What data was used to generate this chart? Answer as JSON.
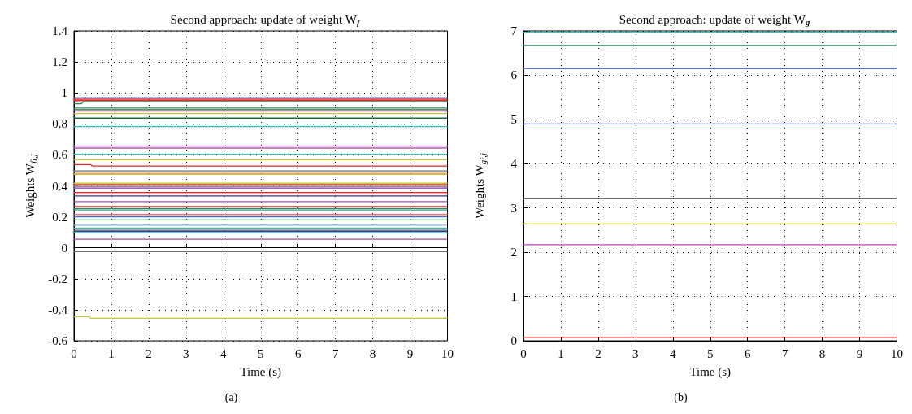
{
  "chart_data": [
    {
      "type": "line",
      "title": "Second approach: update of weight W$_{f}$",
      "xlabel": "Time (s)",
      "ylabel": "Weights W$_{fi,j}$",
      "annotations": [
        "(a)"
      ],
      "xlim": [
        0,
        10
      ],
      "xticks": [
        0,
        1,
        2,
        3,
        4,
        5,
        6,
        7,
        8,
        9,
        10
      ],
      "ylim": [
        -0.6,
        1.4
      ],
      "yticks": [
        -0.6,
        -0.4,
        -0.2,
        0,
        0.2,
        0.4,
        0.6,
        0.8,
        1,
        1.2,
        1.4
      ],
      "grid": true,
      "marker": "none",
      "line_style": "solid",
      "series": [
        {
          "color": "#4f6fc9",
          "x": [
            0,
            10
          ],
          "values": [
            0.969,
            0.969
          ]
        },
        {
          "color": "#e8262a",
          "x": [
            0,
            10
          ],
          "values": [
            0.959,
            0.959
          ]
        },
        {
          "color": "#e8262a",
          "x": [
            0,
            10
          ],
          "values": [
            0.95,
            0.95
          ]
        },
        {
          "color": "#2e8b57",
          "x": [
            0,
            0.2,
            0.25,
            10
          ],
          "values": [
            0.93,
            0.93,
            0.943,
            0.943
          ]
        },
        {
          "color": "#2e8b57",
          "x": [
            0,
            10
          ],
          "values": [
            0.902,
            0.902
          ]
        },
        {
          "color": "#1f6b3a",
          "x": [
            0,
            10
          ],
          "values": [
            0.891,
            0.891
          ]
        },
        {
          "color": "#b45cb4",
          "x": [
            0,
            10
          ],
          "values": [
            0.883,
            0.883
          ]
        },
        {
          "color": "#c6c63a",
          "x": [
            0,
            10
          ],
          "values": [
            0.867,
            0.867
          ]
        },
        {
          "color": "#1f6b3a",
          "x": [
            0,
            10
          ],
          "values": [
            0.837,
            0.837
          ]
        },
        {
          "color": "#2ec4c4",
          "x": [
            0,
            10
          ],
          "values": [
            0.783,
            0.783
          ]
        },
        {
          "color": "#b45cb4",
          "x": [
            0,
            10
          ],
          "values": [
            0.657,
            0.657
          ]
        },
        {
          "color": "#b45cb4",
          "x": [
            0,
            10
          ],
          "values": [
            0.644,
            0.644
          ]
        },
        {
          "color": "#2ec4c4",
          "x": [
            0,
            10
          ],
          "values": [
            0.604,
            0.604
          ]
        },
        {
          "color": "#c6c63a",
          "x": [
            0,
            10
          ],
          "values": [
            0.569,
            0.569
          ]
        },
        {
          "color": "#e8262a",
          "x": [
            0,
            0.45,
            0.5,
            10
          ],
          "values": [
            0.537,
            0.537,
            0.528,
            0.528
          ]
        },
        {
          "color": "#707070",
          "x": [
            0,
            10
          ],
          "values": [
            0.496,
            0.496
          ]
        },
        {
          "color": "#f08a4b",
          "x": [
            0,
            10
          ],
          "values": [
            0.481,
            0.481
          ]
        },
        {
          "color": "#c6c63a",
          "x": [
            0,
            10
          ],
          "values": [
            0.474,
            0.474
          ]
        },
        {
          "color": "#c6c63a",
          "x": [
            0,
            10
          ],
          "values": [
            0.417,
            0.417
          ]
        },
        {
          "color": "#e8262a",
          "x": [
            0,
            10
          ],
          "values": [
            0.409,
            0.409
          ]
        },
        {
          "color": "#f08a4b",
          "x": [
            0,
            10
          ],
          "values": [
            0.402,
            0.402
          ]
        },
        {
          "color": "#4f6fc9",
          "x": [
            0,
            10
          ],
          "values": [
            0.393,
            0.393
          ]
        },
        {
          "color": "#b45cb4",
          "x": [
            0,
            10
          ],
          "values": [
            0.385,
            0.385
          ]
        },
        {
          "color": "#e8262a",
          "x": [
            0,
            10
          ],
          "values": [
            0.357,
            0.357
          ]
        },
        {
          "color": "#f07080",
          "x": [
            0,
            10
          ],
          "values": [
            0.348,
            0.348
          ]
        },
        {
          "color": "#3a3a7a",
          "x": [
            0,
            10
          ],
          "values": [
            0.335,
            0.335
          ]
        },
        {
          "color": "#9b4fc4",
          "x": [
            0,
            10
          ],
          "values": [
            0.298,
            0.298
          ]
        },
        {
          "color": "#e8262a",
          "x": [
            0,
            10
          ],
          "values": [
            0.267,
            0.267
          ]
        },
        {
          "color": "#2e8b57",
          "x": [
            0,
            10
          ],
          "values": [
            0.254,
            0.254
          ]
        },
        {
          "color": "#2a9a9a",
          "x": [
            0,
            10
          ],
          "values": [
            0.244,
            0.244
          ]
        },
        {
          "color": "#f07080",
          "x": [
            0,
            10
          ],
          "values": [
            0.215,
            0.215
          ]
        },
        {
          "color": "#4f6fc9",
          "x": [
            0,
            10
          ],
          "values": [
            0.2,
            0.2
          ]
        },
        {
          "color": "#2e8b57",
          "x": [
            0,
            10
          ],
          "values": [
            0.18,
            0.18
          ]
        },
        {
          "color": "#7fb8e0",
          "x": [
            0,
            10
          ],
          "values": [
            0.146,
            0.146
          ]
        },
        {
          "color": "#2ec4c4",
          "x": [
            0,
            10
          ],
          "values": [
            0.128,
            0.128
          ]
        },
        {
          "color": "#5a6a8a",
          "x": [
            0,
            10
          ],
          "values": [
            0.113,
            0.113
          ]
        },
        {
          "color": "#3a3a7a",
          "x": [
            0,
            10
          ],
          "values": [
            0.106,
            0.106
          ]
        },
        {
          "color": "#2ec4c4",
          "x": [
            0,
            10
          ],
          "values": [
            0.098,
            0.098
          ]
        },
        {
          "color": "#a04fa0",
          "x": [
            0,
            10
          ],
          "values": [
            0.056,
            0.056
          ]
        },
        {
          "color": "#707070",
          "x": [
            0,
            10
          ],
          "values": [
            -0.024,
            -0.024
          ]
        },
        {
          "color": "#c6c63a",
          "x": [
            0,
            0.4,
            0.45,
            10
          ],
          "values": [
            -0.445,
            -0.445,
            -0.455,
            -0.455
          ]
        }
      ]
    },
    {
      "type": "line",
      "title": "Second approach: update of weight W$_{g}$",
      "xlabel": "Time (s)",
      "ylabel": "Weights W$_{gi,j}$",
      "annotations": [
        "(b)"
      ],
      "xlim": [
        0,
        10
      ],
      "xticks": [
        0,
        1,
        2,
        3,
        4,
        5,
        6,
        7,
        8,
        9,
        10
      ],
      "ylim": [
        0,
        7
      ],
      "yticks": [
        0,
        1,
        2,
        3,
        4,
        5,
        6,
        7
      ],
      "grid": true,
      "marker": "none",
      "line_style": "solid",
      "series": [
        {
          "color": "#2ec4c4",
          "x": [
            0,
            10
          ],
          "values": [
            6.97,
            6.97
          ]
        },
        {
          "color": "#2e8b57",
          "x": [
            0,
            10
          ],
          "values": [
            6.67,
            6.67
          ]
        },
        {
          "color": "#4f6fc9",
          "x": [
            0,
            10
          ],
          "values": [
            6.15,
            6.15
          ]
        },
        {
          "color": "#4f6fc9",
          "x": [
            0,
            10
          ],
          "values": [
            4.9,
            4.9
          ]
        },
        {
          "color": "#707070",
          "x": [
            0,
            10
          ],
          "values": [
            3.21,
            3.21
          ]
        },
        {
          "color": "#c6c63a",
          "x": [
            0,
            10
          ],
          "values": [
            2.64,
            2.64
          ]
        },
        {
          "color": "#c040c0",
          "x": [
            0,
            10
          ],
          "values": [
            2.17,
            2.17
          ]
        },
        {
          "color": "#e8262a",
          "x": [
            0,
            10
          ],
          "values": [
            0.07,
            0.07
          ]
        }
      ]
    }
  ]
}
